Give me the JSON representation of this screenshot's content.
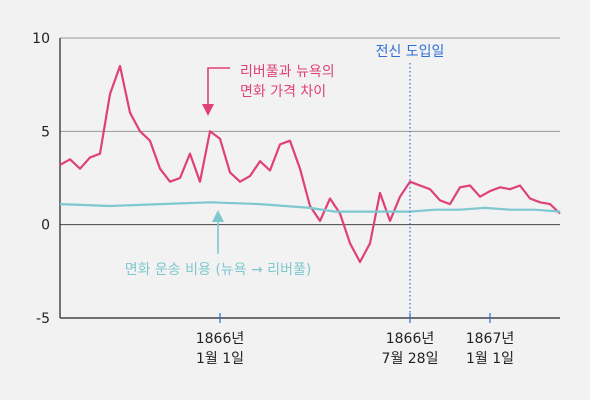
{
  "chart_data": {
    "type": "line",
    "title": "",
    "xlabel": "",
    "ylabel": "",
    "ylim": [
      -5,
      10
    ],
    "yticks": [
      10,
      5,
      0,
      -5
    ],
    "x_tick_labels": [
      {
        "line1": "1866년",
        "line2": "1월 1일",
        "t": 0.32
      },
      {
        "line1": "1866년",
        "line2": "7월 28일",
        "t": 0.7
      },
      {
        "line1": "1867년",
        "line2": "1월 1일",
        "t": 0.86
      }
    ],
    "annotations": {
      "price_gap": {
        "line1": "리버풀과 뉴욕의",
        "line2": "면화 가격 차이",
        "color": "#e0407a"
      },
      "transport_cost": {
        "text": "면화 운송 비용 (뉴욕 → 리버풀)",
        "color": "#7ec8cf"
      },
      "telegraph": {
        "text": "전신 도입일",
        "color": "#2f6fd6"
      }
    },
    "grid": true,
    "series": [
      {
        "role": "price_gap",
        "color": "#e0407a",
        "x": [
          0,
          0.02,
          0.04,
          0.06,
          0.08,
          0.1,
          0.12,
          0.14,
          0.16,
          0.18,
          0.2,
          0.22,
          0.24,
          0.26,
          0.28,
          0.3,
          0.32,
          0.34,
          0.36,
          0.38,
          0.4,
          0.42,
          0.44,
          0.46,
          0.48,
          0.5,
          0.52,
          0.54,
          0.56,
          0.58,
          0.6,
          0.62,
          0.64,
          0.66,
          0.68,
          0.7,
          0.72,
          0.74,
          0.76,
          0.78,
          0.8,
          0.82,
          0.84,
          0.86,
          0.88,
          0.9,
          0.92,
          0.94,
          0.96,
          0.98,
          1.0
        ],
        "values": [
          3.2,
          3.5,
          3.0,
          3.6,
          3.8,
          7.0,
          8.5,
          6.0,
          5.0,
          4.5,
          3.0,
          2.3,
          2.5,
          3.8,
          2.3,
          5.0,
          4.6,
          2.8,
          2.3,
          2.6,
          3.4,
          2.9,
          4.3,
          4.5,
          3.0,
          1.0,
          0.2,
          1.4,
          0.6,
          -1.0,
          -2.0,
          -1.0,
          1.7,
          0.2,
          1.5,
          2.3,
          2.1,
          1.9,
          1.3,
          1.1,
          2.0,
          2.1,
          1.5,
          1.8,
          2.0,
          1.9,
          2.1,
          1.4,
          1.2,
          1.1,
          0.6
        ]
      },
      {
        "role": "transport_cost",
        "color": "#7ec8cf",
        "x": [
          0,
          0.1,
          0.2,
          0.3,
          0.4,
          0.5,
          0.55,
          0.6,
          0.65,
          0.7,
          0.75,
          0.8,
          0.85,
          0.9,
          0.95,
          1.0
        ],
        "values": [
          1.1,
          1.0,
          1.1,
          1.2,
          1.1,
          0.9,
          0.7,
          0.7,
          0.7,
          0.7,
          0.8,
          0.8,
          0.9,
          0.8,
          0.8,
          0.7
        ]
      }
    ]
  }
}
